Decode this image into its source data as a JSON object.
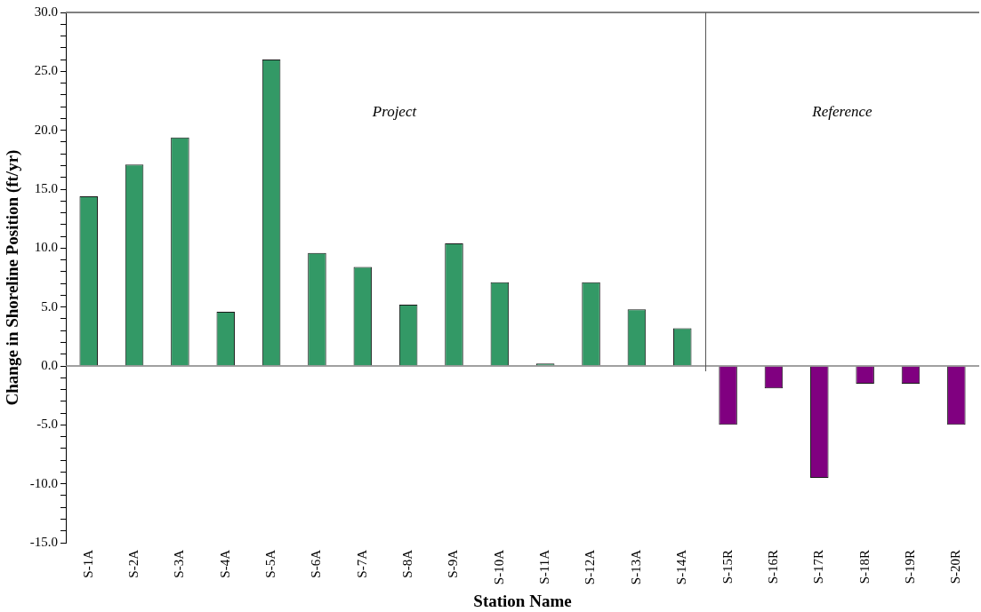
{
  "chart_data": {
    "type": "bar",
    "xlabel": "Station Name",
    "ylabel": "Change in Shoreline Position (ft/yr)",
    "categories": [
      "S-1A",
      "S-2A",
      "S-3A",
      "S-4A",
      "S-5A",
      "S-6A",
      "S-7A",
      "S-8A",
      "S-9A",
      "S-10A",
      "S-11A",
      "S-12A",
      "S-13A",
      "S-14A",
      "S-15R",
      "S-16R",
      "S-17R",
      "S-18R",
      "S-19R",
      "S-20R"
    ],
    "values": [
      14.4,
      17.1,
      19.4,
      4.6,
      26.0,
      9.6,
      8.4,
      5.2,
      10.4,
      7.1,
      0.2,
      7.1,
      4.8,
      3.2,
      -5.0,
      -1.9,
      -9.5,
      -1.5,
      -1.5,
      -5.0
    ],
    "colors": [
      "#339966",
      "#339966",
      "#339966",
      "#339966",
      "#339966",
      "#339966",
      "#339966",
      "#339966",
      "#339966",
      "#339966",
      "#339966",
      "#339966",
      "#339966",
      "#339966",
      "#800080",
      "#800080",
      "#800080",
      "#800080",
      "#800080",
      "#800080"
    ],
    "ylim": [
      -15,
      30
    ],
    "yticks": [
      {
        "value": -15,
        "label": "-15.0"
      },
      {
        "value": -14,
        "label": null
      },
      {
        "value": -13,
        "label": null
      },
      {
        "value": -12,
        "label": null
      },
      {
        "value": -11,
        "label": null
      },
      {
        "value": -10,
        "label": "-10.0"
      },
      {
        "value": -9,
        "label": null
      },
      {
        "value": -8,
        "label": null
      },
      {
        "value": -7,
        "label": null
      },
      {
        "value": -6,
        "label": null
      },
      {
        "value": -5,
        "label": "-5.0"
      },
      {
        "value": -4,
        "label": null
      },
      {
        "value": -3,
        "label": null
      },
      {
        "value": -2,
        "label": null
      },
      {
        "value": -1,
        "label": null
      },
      {
        "value": 0,
        "label": "0.0"
      },
      {
        "value": 1,
        "label": null
      },
      {
        "value": 2,
        "label": null
      },
      {
        "value": 3,
        "label": null
      },
      {
        "value": 4,
        "label": null
      },
      {
        "value": 5,
        "label": "5.0"
      },
      {
        "value": 6,
        "label": null
      },
      {
        "value": 7,
        "label": null
      },
      {
        "value": 8,
        "label": null
      },
      {
        "value": 9,
        "label": null
      },
      {
        "value": 10,
        "label": "10.0"
      },
      {
        "value": 11,
        "label": null
      },
      {
        "value": 12,
        "label": null
      },
      {
        "value": 13,
        "label": null
      },
      {
        "value": 14,
        "label": null
      },
      {
        "value": 15,
        "label": "15.0"
      },
      {
        "value": 16,
        "label": null
      },
      {
        "value": 17,
        "label": null
      },
      {
        "value": 18,
        "label": null
      },
      {
        "value": 19,
        "label": null
      },
      {
        "value": 20,
        "label": "20.0"
      },
      {
        "value": 21,
        "label": null
      },
      {
        "value": 22,
        "label": null
      },
      {
        "value": 23,
        "label": null
      },
      {
        "value": 24,
        "label": null
      },
      {
        "value": 25,
        "label": "25.0"
      },
      {
        "value": 26,
        "label": null
      },
      {
        "value": 27,
        "label": null
      },
      {
        "value": 28,
        "label": null
      },
      {
        "value": 29,
        "label": null
      },
      {
        "value": 30,
        "label": "30.0"
      }
    ],
    "ref_lines": [
      {
        "axis": "y",
        "value": 0,
        "color": "#808080"
      }
    ],
    "annotations": [
      "Project",
      "Reference"
    ],
    "grid": false,
    "legend": false
  }
}
